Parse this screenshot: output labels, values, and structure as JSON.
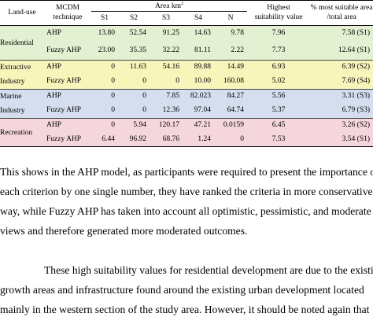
{
  "table": {
    "header": {
      "land_use": "Land-use",
      "mcdm_line1": "MCDM",
      "mcdm_line2": "technique",
      "area": "Area km",
      "area_sup": "2",
      "s1": "S1",
      "s2": "S2",
      "s3": "S3",
      "s4": "S4",
      "n": "N",
      "highest_line1": "Highest",
      "highest_line2": "suitability value",
      "pct_line1": "% most suitable area",
      "pct_line2": "/total area"
    },
    "groups": [
      {
        "land_use": [
          "Residential"
        ],
        "color": "#e3f1d2",
        "rows": [
          {
            "method": "AHP",
            "s1": "13.80",
            "s2": "52.54",
            "s3": "91.25",
            "s4": "14.63",
            "n": "9.78",
            "highest": "7.96",
            "pct": "7.58 (S1)"
          },
          {
            "method": "Fuzzy AHP",
            "s1": "23.00",
            "s2": "35.35",
            "s3": "32.22",
            "s4": "81.11",
            "n": "2.22",
            "highest": "7.73",
            "pct": "12.64 (S1)"
          }
        ]
      },
      {
        "land_use": [
          "Extractive",
          "Industry"
        ],
        "color": "#f8f5bb",
        "rows": [
          {
            "method": "AHP",
            "s1": "0",
            "s2": "11.63",
            "s3": "54.16",
            "s4": "89.88",
            "n": "14.49",
            "highest": "6.93",
            "pct": "6.39 (S2)"
          },
          {
            "method": "Fuzzy AHP",
            "s1": "0",
            "s2": "0",
            "s3": "0",
            "s4": "10.00",
            "n": "160.08",
            "highest": "5.02",
            "pct": "7.69 (S4)"
          }
        ]
      },
      {
        "land_use": [
          "Marine",
          "Industry"
        ],
        "color": "#d4deee",
        "rows": [
          {
            "method": "AHP",
            "s1": "0",
            "s2": "0",
            "s3": "7.85",
            "s4": "82.023",
            "n": "84.27",
            "highest": "5.56",
            "pct": "3.31 (S3)"
          },
          {
            "method": "Fuzzy AHP",
            "s1": "0",
            "s2": "0",
            "s3": "12.36",
            "s4": "97.04",
            "n": "64.74",
            "highest": "5.37",
            "pct": "6.79 (S3)"
          }
        ]
      },
      {
        "land_use": [
          "Recreation"
        ],
        "color": "#f5d6dc",
        "rows": [
          {
            "method": "AHP",
            "s1": "0",
            "s2": "5.94",
            "s3": "120.17",
            "s4": "47.21",
            "n": "0.0159",
            "highest": "6.45",
            "pct": "3.26 (S2)"
          },
          {
            "method": "Fuzzy AHP",
            "s1": "6.44",
            "s2": "96.92",
            "s3": "68.76",
            "s4": "1.24",
            "n": "0",
            "highest": "7.53",
            "pct": "3.54 (S1)"
          }
        ]
      }
    ]
  },
  "paragraphs": [
    {
      "indent": false,
      "lines": [
        "This shows in the AHP model, as participants were required to present the importance of",
        "each criterion by one single number, they have ranked the criteria in more conservative",
        "way, while Fuzzy AHP has taken into account all optimistic, pessimistic, and moderate",
        "views and therefore generated more moderated outcomes."
      ]
    },
    {
      "indent": true,
      "lines": [
        "These high suitability values for residential development are due to the existing",
        "growth areas and infrastructure found around the existing urban development located",
        "mainly in the western section of the study area. However, it should be noted again that"
      ]
    }
  ]
}
